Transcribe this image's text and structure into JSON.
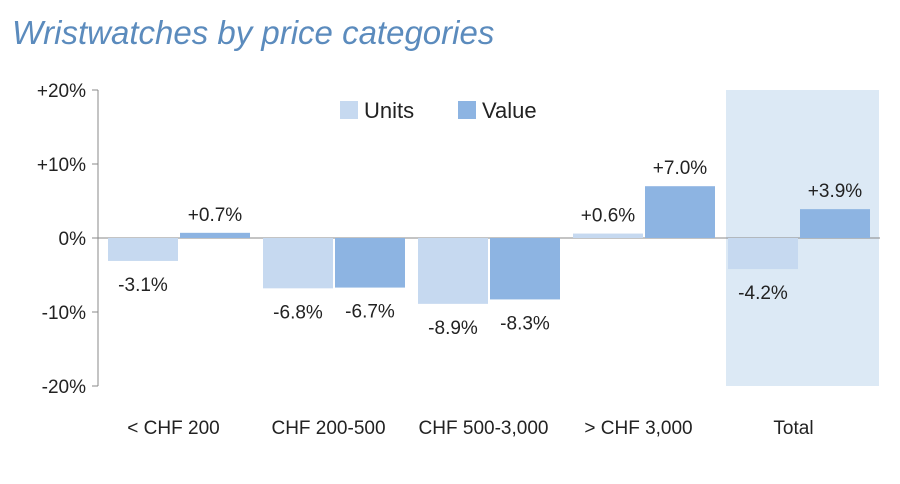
{
  "chart_data": {
    "type": "bar",
    "title": "Wristwatches by price categories",
    "categories": [
      "< CHF 200",
      "CHF 200-500",
      "CHF 500-3,000",
      "> CHF 3,000",
      "Total"
    ],
    "series": [
      {
        "name": "Units",
        "values": [
          -3.1,
          -6.8,
          -8.9,
          0.6,
          -4.2
        ],
        "labels": [
          "-3.1%",
          "-6.8%",
          "-8.9%",
          "+0.6%",
          "-4.2%"
        ],
        "color": "#c6d9f0"
      },
      {
        "name": "Value",
        "values": [
          0.7,
          -6.7,
          -8.3,
          7.0,
          3.9
        ],
        "labels": [
          "+0.7%",
          "-6.7%",
          "-8.3%",
          "+7.0%",
          "+3.9%"
        ],
        "color": "#8db4e2"
      }
    ],
    "yticks": [
      "+20%",
      "+10%",
      "0%",
      "-10%",
      "-20%"
    ],
    "ytick_values": [
      20,
      10,
      0,
      -10,
      -20
    ],
    "ylim": [
      -20,
      20
    ],
    "unit": "%",
    "highlight_category": "Total",
    "highlight_color": "#dce9f5",
    "legend": "top-center",
    "grid": false
  }
}
